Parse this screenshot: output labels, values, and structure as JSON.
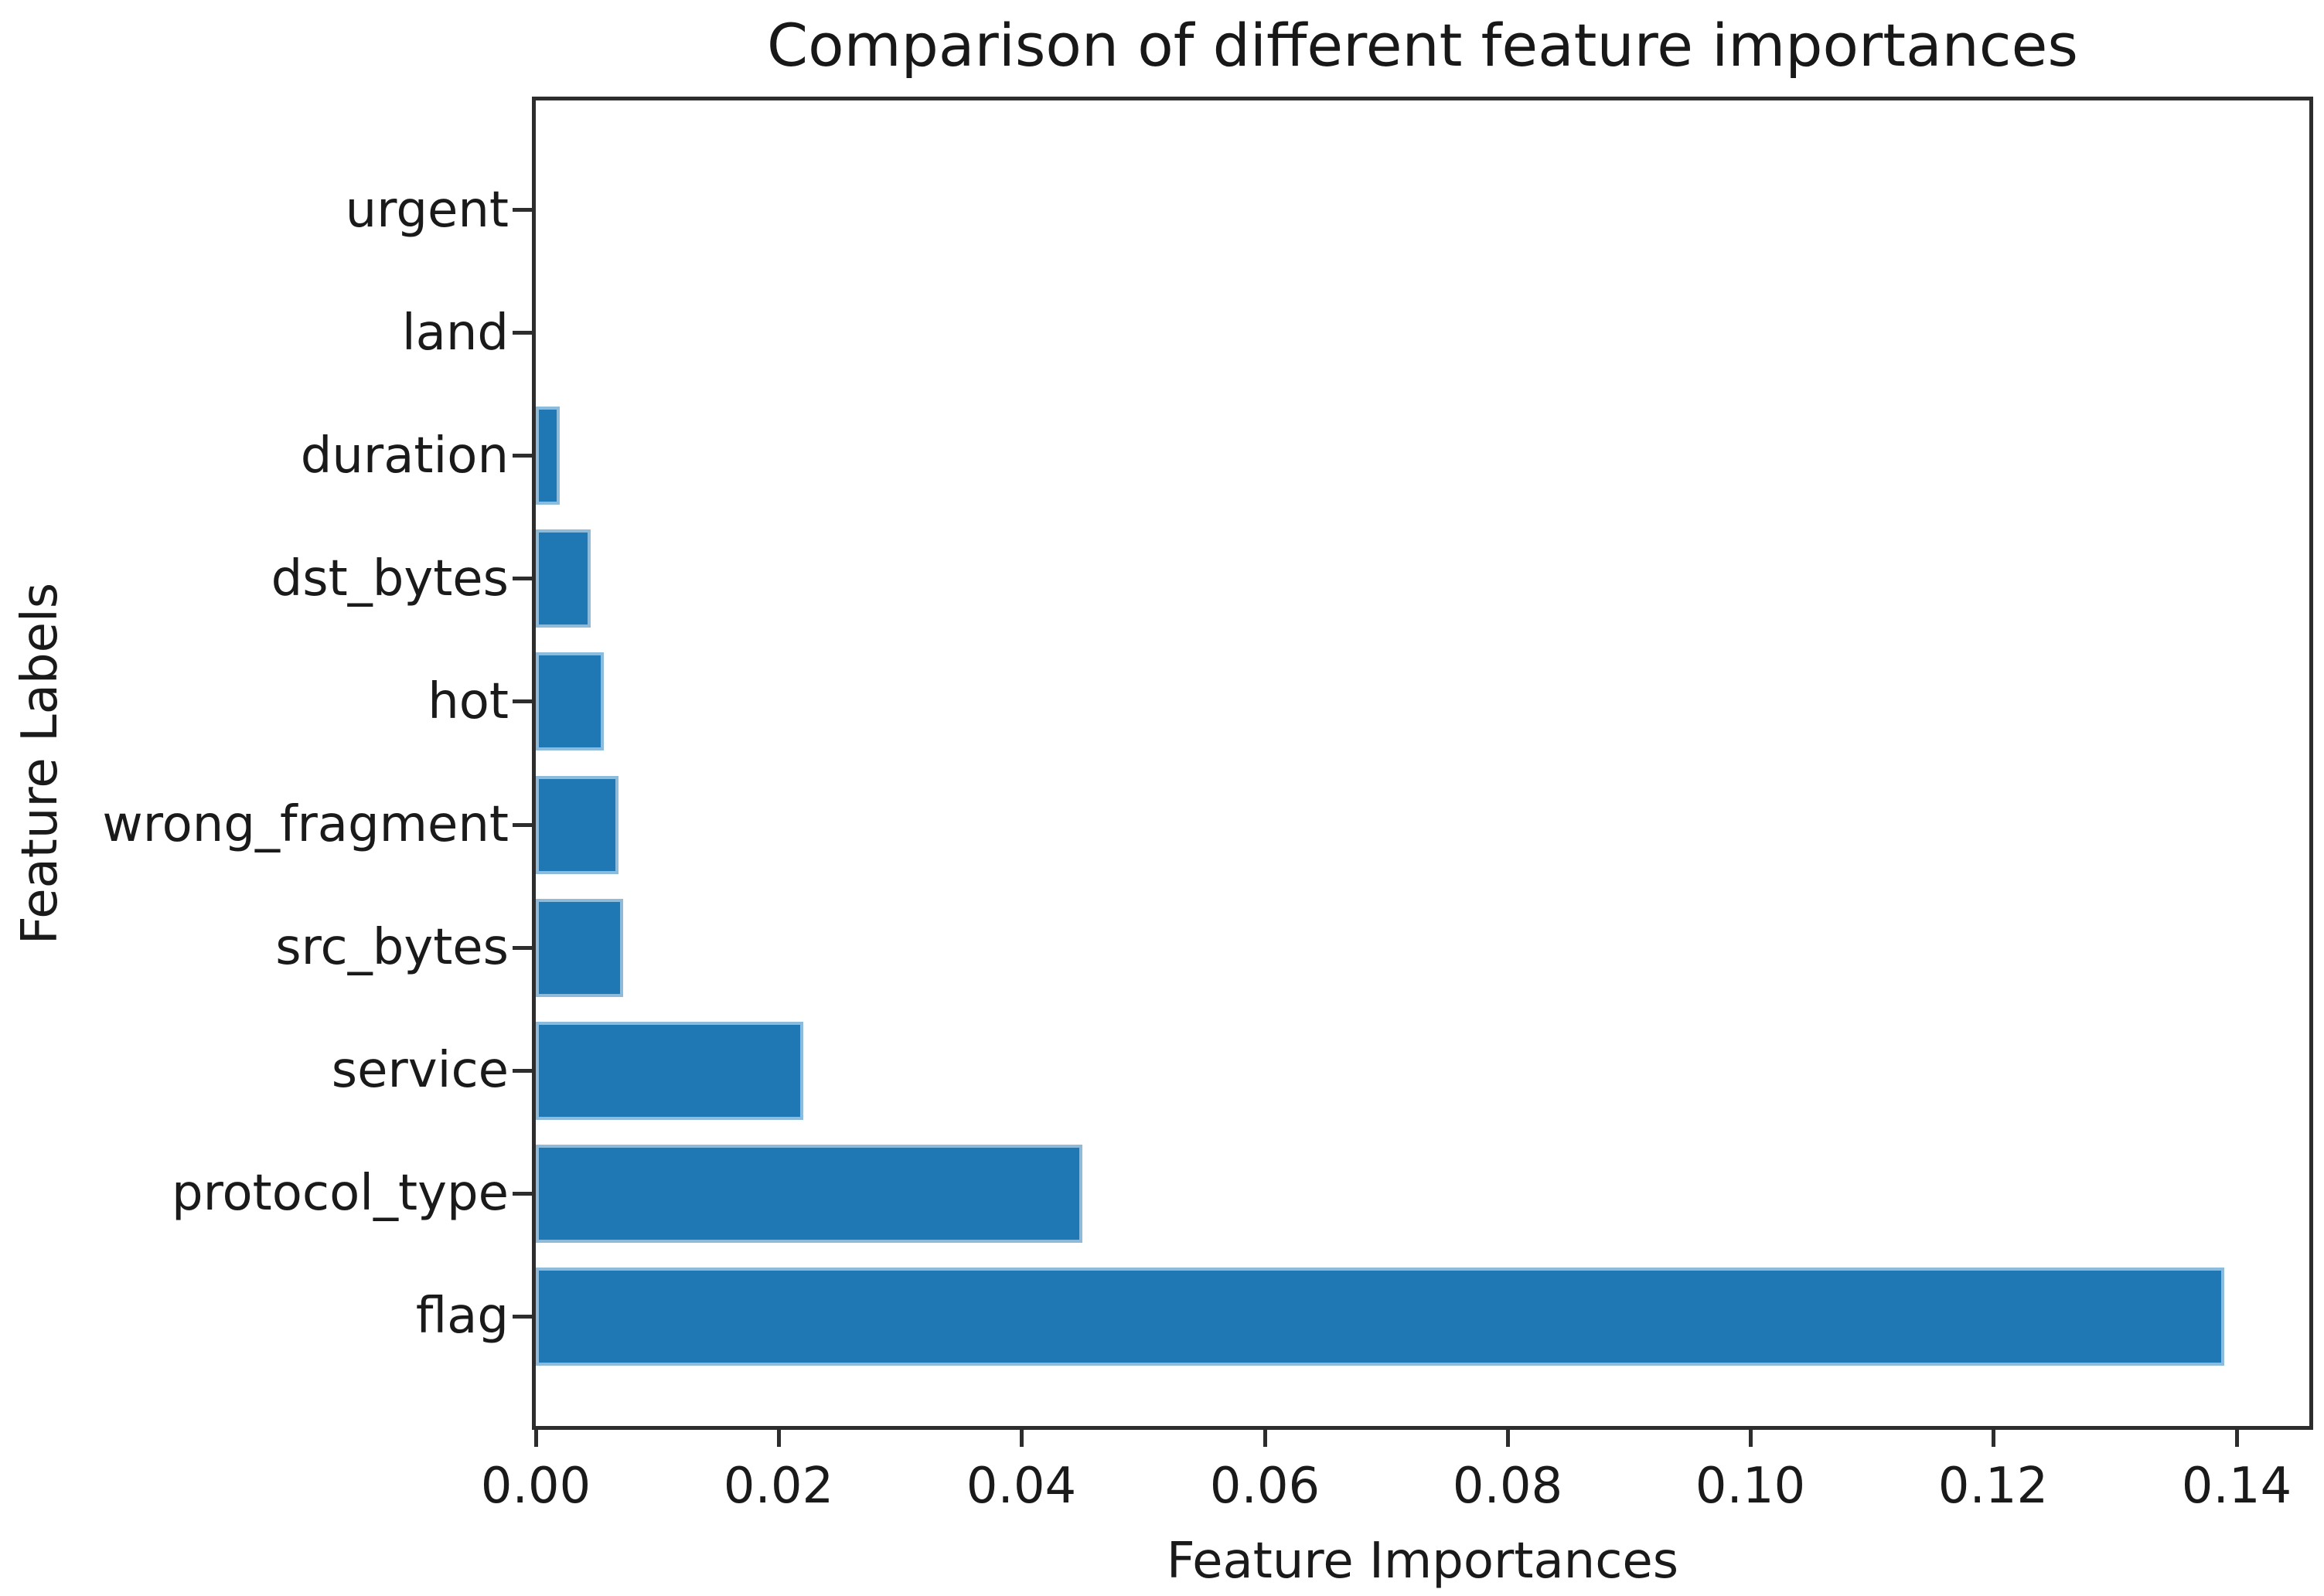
{
  "figure": {
    "background": "#ffffff"
  },
  "chart_data": {
    "type": "bar",
    "orientation": "horizontal",
    "title": "Comparison of different feature importances",
    "xlabel": "Feature Importances",
    "ylabel": "Feature Labels",
    "categories_top_to_bottom": [
      "urgent",
      "land",
      "duration",
      "dst_bytes",
      "hot",
      "wrong_fragment",
      "src_bytes",
      "service",
      "protocol_type",
      "flag"
    ],
    "values_top_to_bottom": [
      0.0,
      0.0,
      0.002,
      0.0045,
      0.0056,
      0.0068,
      0.0072,
      0.022,
      0.045,
      0.139
    ],
    "xticks": [
      0.0,
      0.02,
      0.04,
      0.06,
      0.08,
      0.1,
      0.12,
      0.14
    ],
    "xtick_labels": [
      "0.00",
      "0.02",
      "0.04",
      "0.06",
      "0.08",
      "0.10",
      "0.12",
      "0.14"
    ],
    "xlim": [
      0,
      0.146
    ],
    "grid": false,
    "legend": null,
    "bar_color": "#1f77b4",
    "bar_edge_color": "#8dbbdc",
    "spine_color": "#2d2d2d",
    "text_color": "#1a1a1a"
  }
}
